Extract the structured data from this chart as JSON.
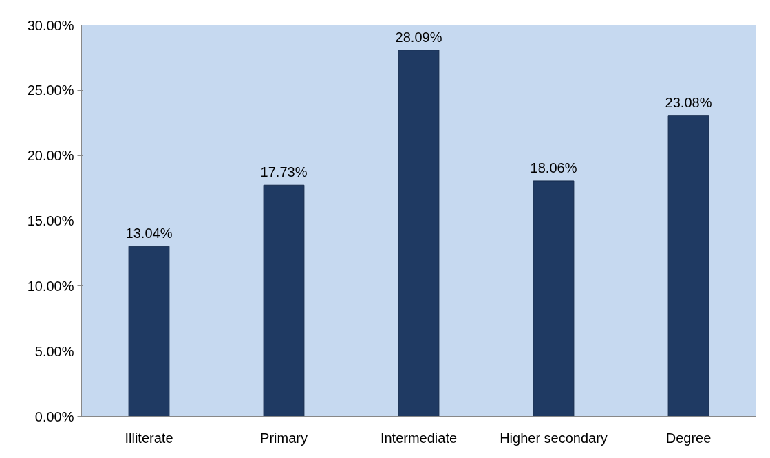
{
  "chart_data": {
    "type": "bar",
    "categories": [
      "Illiterate",
      "Primary",
      "Intermediate",
      "Higher secondary",
      "Degree"
    ],
    "values": [
      13.04,
      17.73,
      28.09,
      18.06,
      23.08
    ],
    "value_labels": [
      "13.04%",
      "17.73%",
      "28.09%",
      "18.06%",
      "23.08%"
    ],
    "color": "#1f3a63",
    "ylim": [
      0,
      30
    ],
    "yticks": [
      {
        "value": 0,
        "label": "0.00%"
      },
      {
        "value": 5,
        "label": "5.00%"
      },
      {
        "value": 10,
        "label": "10.00%"
      },
      {
        "value": 15,
        "label": "15.00%"
      },
      {
        "value": 20,
        "label": "20.00%"
      },
      {
        "value": 25,
        "label": "25.00%"
      },
      {
        "value": 30,
        "label": "30.00%"
      }
    ],
    "grid": false
  }
}
